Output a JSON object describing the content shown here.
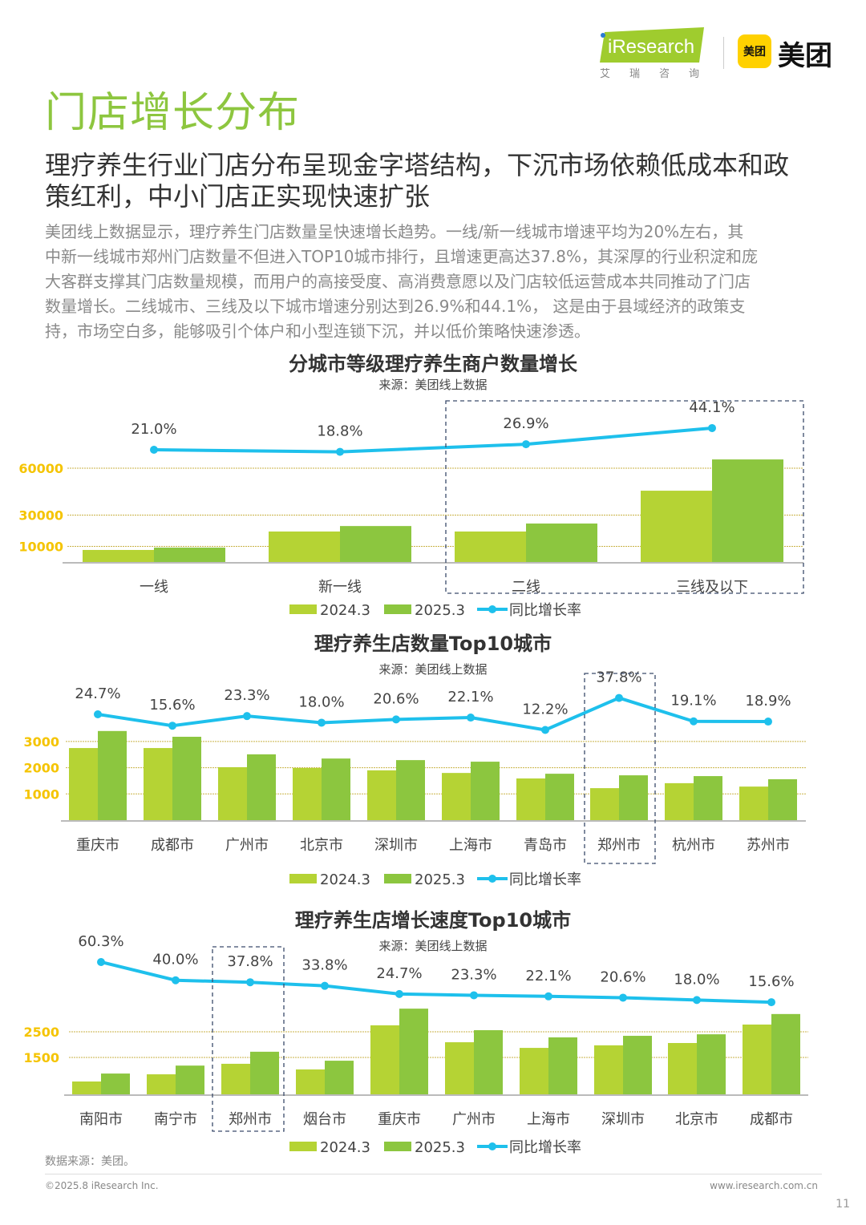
{
  "header": {
    "iresearch_logo": "iResearch",
    "iresearch_cn": "艾瑞咨询",
    "meituan_badge": "美团",
    "meituan_word": "美团",
    "colors": {
      "brand_green": "#8dc63f",
      "meituan_yellow": "#ffd100"
    }
  },
  "page": {
    "title": "门店增长分布",
    "headline": [
      "理疗养生行业门店分布呈现金字塔结构，下沉市场依赖低成本和政",
      "策红利，中小门店正实现快速扩张"
    ],
    "body": [
      "美团线上数据显示，理疗养生门店数量呈快速增长趋势。一线/新一线城市增速平均为20%左右，其",
      "中新一线城市郑州门店数量不但进入TOP10城市排行，且增速更高达37.8%，其深厚的行业积淀和庞",
      "大客群支撑其门店数量规模，而用户的高接受度、高消费意愿以及门店较低运营成本共同推动了门店",
      "数量增长。二线城市、三线及以下城市增速分别达到26.9%和44.1%， 这是由于县域经济的政策支",
      "持，市场空白多，能够吸引个体户和小型连锁下沉，并以低价策略快速渗透。"
    ]
  },
  "chart_data": [
    {
      "type": "bar",
      "title": "分城市等级理疗养生商户数量增长",
      "source": "来源：美团线上数据",
      "categories": [
        "一线",
        "新一线",
        "二线",
        "三线及以下"
      ],
      "series": [
        {
          "name": "2024.3",
          "values": [
            7700,
            19500,
            19500,
            45600
          ],
          "color": "#b5d334"
        },
        {
          "name": "2025.3",
          "values": [
            9200,
            23000,
            24600,
            65600
          ],
          "color": "#8cc63f"
        }
      ],
      "line_series": {
        "name": "同比增长率",
        "values": [
          21.0,
          18.8,
          26.9,
          44.1
        ],
        "labels": [
          "21.0%",
          "18.8%",
          "26.9%",
          "44.1%"
        ],
        "color": "#1ec0ec"
      },
      "yticks": [
        "10000",
        "30000",
        "60000"
      ],
      "ylim": [
        0,
        70000
      ],
      "grid": true,
      "legend": "bottom",
      "highlight": [
        "二线",
        "三线及以下"
      ]
    },
    {
      "type": "bar",
      "title": "理疗养生店数量Top10城市",
      "source": "来源：美团线上数据",
      "categories": [
        "重庆市",
        "成都市",
        "广州市",
        "北京市",
        "深圳市",
        "上海市",
        "青岛市",
        "郑州市",
        "杭州市",
        "苏州市"
      ],
      "series": [
        {
          "name": "2024.3",
          "values": [
            2750,
            2750,
            2020,
            1990,
            1900,
            1800,
            1590,
            1220,
            1410,
            1280
          ],
          "color": "#b5d334"
        },
        {
          "name": "2025.3",
          "values": [
            3400,
            3180,
            2510,
            2350,
            2290,
            2230,
            1770,
            1710,
            1680,
            1560
          ],
          "color": "#8cc63f"
        }
      ],
      "line_series": {
        "name": "同比增长率",
        "values": [
          24.7,
          15.6,
          23.3,
          18.0,
          20.6,
          22.1,
          12.2,
          37.8,
          19.1,
          18.9
        ],
        "labels": [
          "24.7%",
          "15.6%",
          "23.3%",
          "18.0%",
          "20.6%",
          "22.1%",
          "12.2%",
          "37.8%",
          "19.1%",
          "18.9%"
        ],
        "color": "#1ec0ec"
      },
      "yticks": [
        "1000",
        "2000",
        "3000"
      ],
      "ylim": [
        0,
        3500
      ],
      "grid": true,
      "legend": "bottom",
      "highlight": [
        "郑州市"
      ]
    },
    {
      "type": "bar",
      "title": "理疗养生店增长速度Top10城市",
      "source": "来源：美团线上数据",
      "categories": [
        "南阳市",
        "南宁市",
        "郑州市",
        "烟台市",
        "重庆市",
        "广州市",
        "上海市",
        "深圳市",
        "北京市",
        "成都市"
      ],
      "series": [
        {
          "name": "2024.3",
          "values": [
            500,
            780,
            1190,
            970,
            2690,
            2030,
            1810,
            1910,
            2000,
            2720
          ],
          "color": "#b5d334"
        },
        {
          "name": "2025.3",
          "values": [
            810,
            1120,
            1660,
            1310,
            3340,
            2500,
            2220,
            2280,
            2340,
            3130
          ],
          "color": "#8cc63f"
        }
      ],
      "line_series": {
        "name": "同比增长率",
        "values": [
          60.3,
          40.0,
          37.8,
          33.8,
          24.7,
          23.3,
          22.1,
          20.6,
          18.0,
          15.6
        ],
        "labels": [
          "60.3%",
          "40.0%",
          "37.8%",
          "33.8%",
          "24.7%",
          "23.3%",
          "22.1%",
          "20.6%",
          "18.0%",
          "15.6%"
        ],
        "color": "#1ec0ec"
      },
      "yticks": [
        "1500",
        "2500"
      ],
      "ylim": [
        0,
        3500
      ],
      "grid": true,
      "legend": "bottom",
      "highlight": [
        "郑州市"
      ]
    }
  ],
  "footer": {
    "source_note": "数据来源：美团。",
    "copyright": "©2025.8 iResearch Inc.",
    "site": "www.iresearch.com.cn",
    "page_number": "11"
  }
}
